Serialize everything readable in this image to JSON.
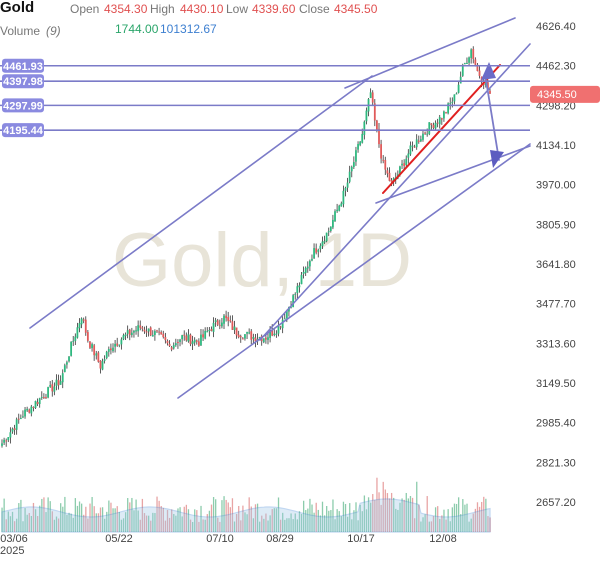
{
  "header": {
    "symbol": "Gold",
    "open_label": "Open",
    "open_value": "4354.30",
    "high_label": "High",
    "high_value": "4430.10",
    "low_label": "Low",
    "low_value": "4339.60",
    "close_label": "Close",
    "close_value": "4345.50",
    "volume_label": "Volume",
    "volume_period": "(9)",
    "volume_value_1": "1744.00",
    "volume_value_2": "101312.67"
  },
  "watermark": "Gold, 1D",
  "colors": {
    "up": "#2eb87f",
    "down": "#e05a5a",
    "wick": "#333333",
    "trendline": "#7b7bc8",
    "red_line": "#e02020",
    "price_tag": "#f07070",
    "hline_tag": "#8a8ae0",
    "volume": "#4f8fd8",
    "volume_bar": "#9fc8e8",
    "axis_text": "#444444"
  },
  "chart_data": {
    "type": "candlestick",
    "title": "Gold",
    "last_price": "4345.50",
    "y_ticks": [
      "4626.40",
      "4462.30",
      "4298.20",
      "4134.10",
      "3970.00",
      "3805.90",
      "3641.80",
      "3477.70",
      "3313.60",
      "3149.50",
      "2985.40",
      "2821.30",
      "2657.20"
    ],
    "ylim": [
      2657.2,
      4626.4
    ],
    "x_ticks": [
      "03/06",
      "05/22",
      "07/10",
      "08/29",
      "10/17",
      "12/08"
    ],
    "x_year_label": "2025",
    "horizontal_levels": [
      "4461.93",
      "4397.98",
      "4297.99",
      "4195.44"
    ],
    "ohlc_anchors": [
      {
        "i": 0,
        "close": 2900
      },
      {
        "i": 10,
        "close": 3020
      },
      {
        "i": 20,
        "close": 3100
      },
      {
        "i": 28,
        "close": 3160
      },
      {
        "i": 33,
        "close": 3300
      },
      {
        "i": 38,
        "close": 3430
      },
      {
        "i": 41,
        "close": 3330
      },
      {
        "i": 47,
        "close": 3220
      },
      {
        "i": 52,
        "close": 3300
      },
      {
        "i": 58,
        "close": 3340
      },
      {
        "i": 66,
        "close": 3380
      },
      {
        "i": 74,
        "close": 3350
      },
      {
        "i": 80,
        "close": 3300
      },
      {
        "i": 86,
        "close": 3340
      },
      {
        "i": 94,
        "close": 3320
      },
      {
        "i": 100,
        "close": 3380
      },
      {
        "i": 106,
        "close": 3420
      },
      {
        "i": 112,
        "close": 3360
      },
      {
        "i": 120,
        "close": 3340
      },
      {
        "i": 126,
        "close": 3340
      },
      {
        "i": 132,
        "close": 3380
      },
      {
        "i": 140,
        "close": 3520
      },
      {
        "i": 148,
        "close": 3680
      },
      {
        "i": 156,
        "close": 3780
      },
      {
        "i": 164,
        "close": 3950
      },
      {
        "i": 172,
        "close": 4180
      },
      {
        "i": 176,
        "close": 4350
      },
      {
        "i": 178,
        "close": 4230
      },
      {
        "i": 182,
        "close": 4050
      },
      {
        "i": 186,
        "close": 3970
      },
      {
        "i": 190,
        "close": 4030
      },
      {
        "i": 194,
        "close": 4100
      },
      {
        "i": 198,
        "close": 4150
      },
      {
        "i": 204,
        "close": 4210
      },
      {
        "i": 210,
        "close": 4250
      },
      {
        "i": 216,
        "close": 4330
      },
      {
        "i": 220,
        "close": 4450
      },
      {
        "i": 224,
        "close": 4530
      },
      {
        "i": 227,
        "close": 4440
      },
      {
        "i": 230,
        "close": 4400
      },
      {
        "i": 233,
        "close": 4346
      }
    ],
    "volume_series": "approximate"
  }
}
